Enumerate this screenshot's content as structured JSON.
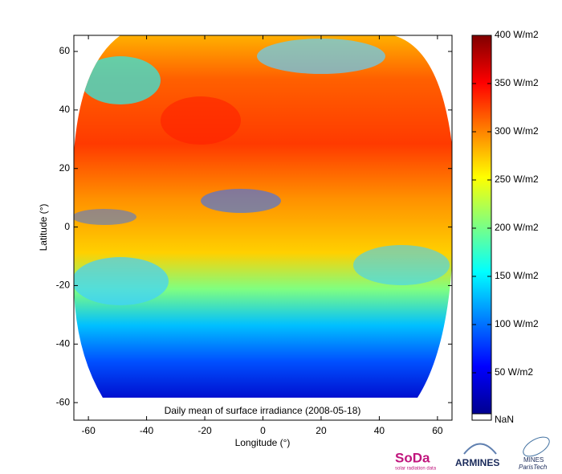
{
  "chart_data": {
    "type": "map",
    "annotation": "Daily mean of surface irradiance (2008-05-18)",
    "xlabel": "Longitude (°)",
    "ylabel": "Latitude (°)",
    "xlim": [
      -65,
      65
    ],
    "ylim": [
      -66,
      65.5
    ],
    "xticks": [
      -60,
      -40,
      -20,
      0,
      20,
      40,
      60
    ],
    "yticks": [
      -60,
      -40,
      -20,
      0,
      20,
      40,
      60
    ],
    "colorbar": {
      "lim": [
        7.5,
        400
      ],
      "ticks": [
        {
          "value": 50,
          "label": "50 W/m2"
        },
        {
          "value": 100,
          "label": "100 W/m2"
        },
        {
          "value": 150,
          "label": "150 W/m2"
        },
        {
          "value": 200,
          "label": "200 W/m2"
        },
        {
          "value": 250,
          "label": "250 W/m2"
        },
        {
          "value": 300,
          "label": "300 W/m2"
        },
        {
          "value": 350,
          "label": "350 W/m2"
        },
        {
          "value": 400,
          "label": "400 W/m2"
        }
      ],
      "nan_label": "NaN"
    },
    "logos": [
      "SoDa",
      "solar radiation data",
      "ARMINES",
      "MINES",
      "ParisTech"
    ]
  }
}
